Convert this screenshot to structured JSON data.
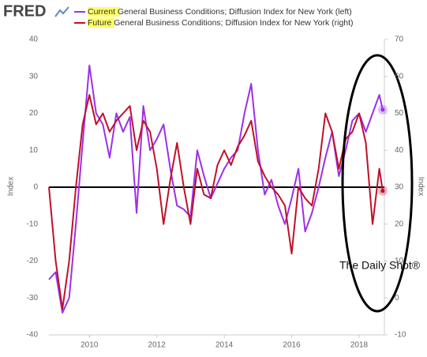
{
  "logo": "FRED",
  "annotation": "The Daily Shot®",
  "chart_data": {
    "type": "line",
    "y_label": "Index",
    "y2_label": "Index",
    "x": [
      2008.8,
      2009.0,
      2009.2,
      2009.4,
      2009.6,
      2009.8,
      2010.0,
      2010.2,
      2010.4,
      2010.6,
      2010.8,
      2011.0,
      2011.2,
      2011.4,
      2011.6,
      2011.8,
      2012.0,
      2012.2,
      2012.4,
      2012.6,
      2012.8,
      2013.0,
      2013.2,
      2013.4,
      2013.6,
      2013.8,
      2014.0,
      2014.2,
      2014.4,
      2014.6,
      2014.8,
      2015.0,
      2015.2,
      2015.4,
      2015.6,
      2015.8,
      2016.0,
      2016.2,
      2016.4,
      2016.6,
      2016.8,
      2017.0,
      2017.2,
      2017.4,
      2017.6,
      2017.8,
      2018.0,
      2018.2,
      2018.4,
      2018.6,
      2018.7
    ],
    "series": [
      {
        "name": "Current General Business Conditions; Diffusion Index for New York (left)",
        "color": "#9b30e8",
        "values": [
          -25,
          -23,
          -34,
          -30,
          -10,
          12,
          33,
          20,
          17,
          8,
          20,
          15,
          19,
          -7,
          22,
          10,
          13,
          17,
          5,
          -5,
          -6,
          -8,
          10,
          3,
          -3,
          1,
          5,
          8,
          10,
          20,
          28,
          10,
          -2,
          2,
          -5,
          -10,
          -3,
          5,
          -12,
          -7,
          0,
          8,
          15,
          3,
          10,
          18,
          20,
          15,
          20,
          25,
          21
        ]
      },
      {
        "name": "Future General Business Conditions; Diffusion Index for New York (right)",
        "color": "#c0102a",
        "axis": "y2",
        "values": [
          30,
          10,
          -3,
          10,
          30,
          47,
          55,
          47,
          50,
          45,
          48,
          50,
          52,
          40,
          48,
          45,
          35,
          20,
          32,
          42,
          30,
          20,
          35,
          28,
          27,
          36,
          40,
          36,
          41,
          44,
          48,
          37,
          33,
          30,
          28,
          25,
          12,
          30,
          27,
          25,
          35,
          50,
          45,
          35,
          43,
          45,
          50,
          42,
          20,
          35,
          29
        ]
      }
    ],
    "xlim": [
      2008.8,
      2018.75
    ],
    "xticks": [
      2010,
      2012,
      2014,
      2016,
      2018
    ],
    "ylim": [
      -40,
      40
    ],
    "yticks": [
      -40,
      -30,
      -20,
      -10,
      0,
      10,
      20,
      30,
      40
    ],
    "y2lim": [
      -10,
      70
    ],
    "y2ticks": [
      -10,
      0,
      10,
      20,
      30,
      40,
      50,
      60,
      70
    ],
    "highlight_color": "#ffff66"
  }
}
